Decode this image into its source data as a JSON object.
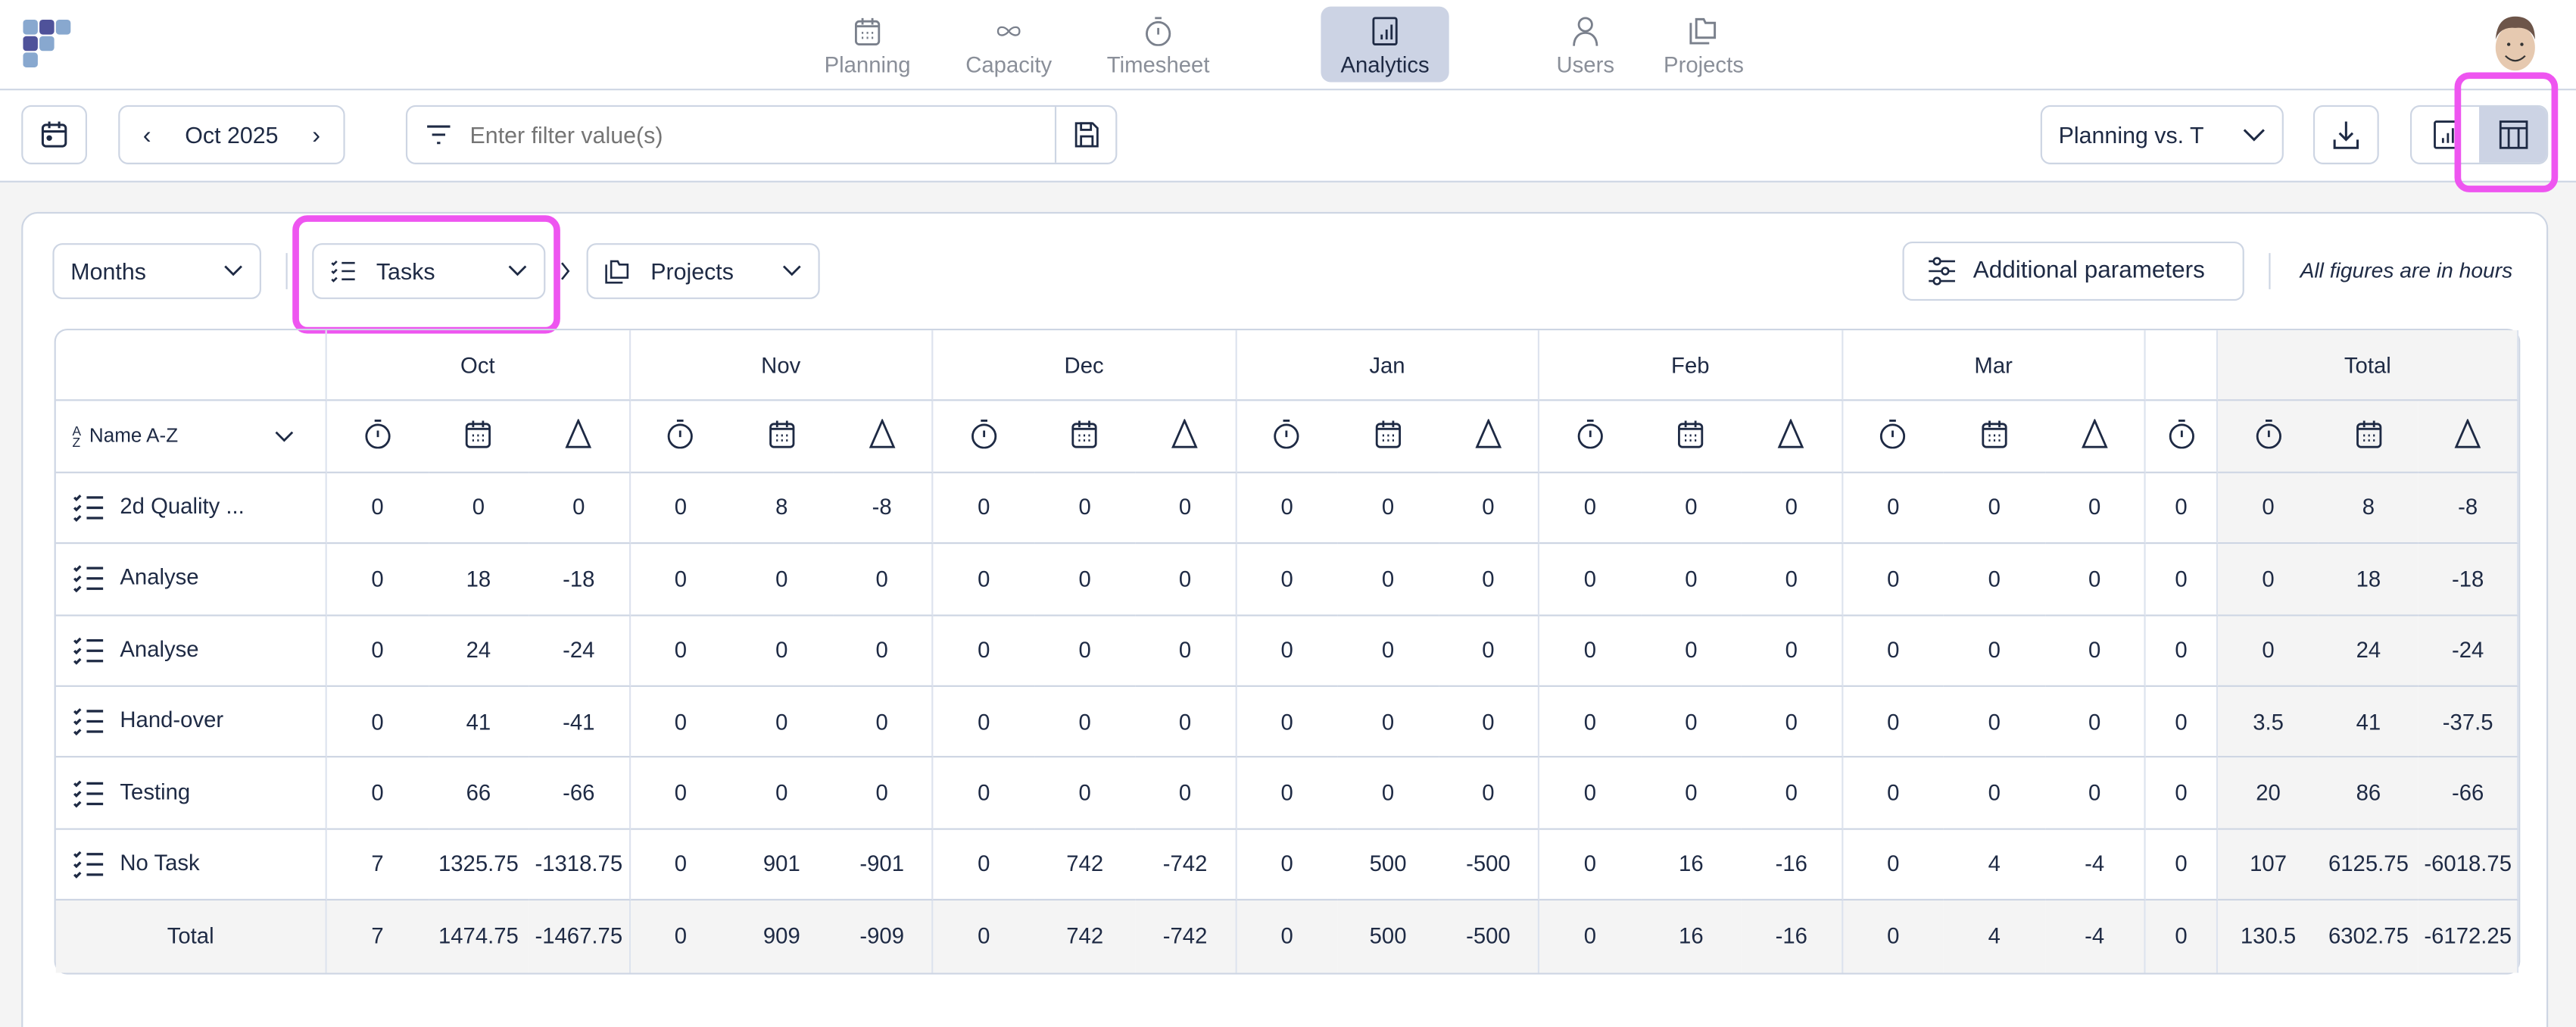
{
  "nav": {
    "items": [
      {
        "label": "Planning",
        "icon": "calendar-icon"
      },
      {
        "label": "Capacity",
        "icon": "infinity-icon"
      },
      {
        "label": "Timesheet",
        "icon": "stopwatch-icon"
      },
      {
        "label": "Analytics",
        "icon": "bar-chart-icon",
        "active": true
      },
      {
        "label": "Users",
        "icon": "user-icon"
      },
      {
        "label": "Projects",
        "icon": "folders-icon"
      }
    ]
  },
  "toolbar": {
    "period": "Oct 2025",
    "filter_placeholder": "Enter filter value(s)",
    "report_select": "Planning vs. T",
    "view_mode": "table"
  },
  "controls": {
    "granularity": "Months",
    "group1": "Tasks",
    "group2": "Projects",
    "additional_parameters": "Additional parameters",
    "units_note": "All figures are in hours"
  },
  "table": {
    "sort_label": "Name A-Z",
    "months": [
      "Oct",
      "Nov",
      "Dec",
      "Jan",
      "Feb",
      "Mar"
    ],
    "total_label": "Total",
    "metric_icons": [
      "stopwatch-icon",
      "calendar-icon",
      "delta-icon"
    ],
    "rows": [
      {
        "name": "2d Quality ...",
        "months": [
          [
            "0",
            "0",
            "0"
          ],
          [
            "0",
            "8",
            "-8"
          ],
          [
            "0",
            "0",
            "0"
          ],
          [
            "0",
            "0",
            "0"
          ],
          [
            "0",
            "0",
            "0"
          ],
          [
            "0",
            "0",
            "0"
          ]
        ],
        "partial": "0",
        "total": [
          "0",
          "8",
          "-8"
        ]
      },
      {
        "name": "Analyse",
        "months": [
          [
            "0",
            "18",
            "-18"
          ],
          [
            "0",
            "0",
            "0"
          ],
          [
            "0",
            "0",
            "0"
          ],
          [
            "0",
            "0",
            "0"
          ],
          [
            "0",
            "0",
            "0"
          ],
          [
            "0",
            "0",
            "0"
          ]
        ],
        "partial": "0",
        "total": [
          "0",
          "18",
          "-18"
        ]
      },
      {
        "name": "Analyse",
        "months": [
          [
            "0",
            "24",
            "-24"
          ],
          [
            "0",
            "0",
            "0"
          ],
          [
            "0",
            "0",
            "0"
          ],
          [
            "0",
            "0",
            "0"
          ],
          [
            "0",
            "0",
            "0"
          ],
          [
            "0",
            "0",
            "0"
          ]
        ],
        "partial": "0",
        "total": [
          "0",
          "24",
          "-24"
        ]
      },
      {
        "name": "Hand-over",
        "months": [
          [
            "0",
            "41",
            "-41"
          ],
          [
            "0",
            "0",
            "0"
          ],
          [
            "0",
            "0",
            "0"
          ],
          [
            "0",
            "0",
            "0"
          ],
          [
            "0",
            "0",
            "0"
          ],
          [
            "0",
            "0",
            "0"
          ]
        ],
        "partial": "0",
        "total": [
          "3.5",
          "41",
          "-37.5"
        ]
      },
      {
        "name": "Testing",
        "months": [
          [
            "0",
            "66",
            "-66"
          ],
          [
            "0",
            "0",
            "0"
          ],
          [
            "0",
            "0",
            "0"
          ],
          [
            "0",
            "0",
            "0"
          ],
          [
            "0",
            "0",
            "0"
          ],
          [
            "0",
            "0",
            "0"
          ]
        ],
        "partial": "0",
        "total": [
          "20",
          "86",
          "-66"
        ]
      },
      {
        "name": "No Task",
        "months": [
          [
            "7",
            "1325.75",
            "-1318.75"
          ],
          [
            "0",
            "901",
            "-901"
          ],
          [
            "0",
            "742",
            "-742"
          ],
          [
            "0",
            "500",
            "-500"
          ],
          [
            "0",
            "16",
            "-16"
          ],
          [
            "0",
            "4",
            "-4"
          ]
        ],
        "partial": "0",
        "total": [
          "107",
          "6125.75",
          "-6018.75"
        ]
      }
    ],
    "totals": {
      "name": "Total",
      "months": [
        [
          "7",
          "1474.75",
          "-1467.75"
        ],
        [
          "0",
          "909",
          "-909"
        ],
        [
          "0",
          "742",
          "-742"
        ],
        [
          "0",
          "500",
          "-500"
        ],
        [
          "0",
          "16",
          "-16"
        ],
        [
          "0",
          "4",
          "-4"
        ]
      ],
      "partial": "0",
      "total": [
        "130.5",
        "6302.75",
        "-6172.25"
      ]
    }
  },
  "colors": {
    "text": "#1e2a44",
    "border": "#cdd5e3",
    "active": "#ccd3e4",
    "highlight": "#ee55f0",
    "logo_dark": "#4f529a",
    "logo_light": "#88a8cf"
  }
}
